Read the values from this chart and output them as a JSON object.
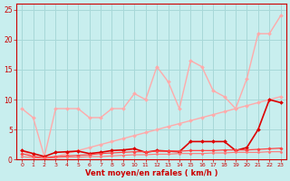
{
  "xlabel": "Vent moyen/en rafales ( km/h )",
  "xlim": [
    -0.5,
    23.5
  ],
  "ylim": [
    0,
    26
  ],
  "bg_color": "#c8eeee",
  "grid_color": "#a8d8d8",
  "xticks": [
    0,
    1,
    2,
    3,
    4,
    5,
    6,
    7,
    8,
    9,
    10,
    11,
    12,
    13,
    14,
    15,
    16,
    17,
    18,
    19,
    20,
    21,
    22,
    23
  ],
  "yticks": [
    0,
    5,
    10,
    15,
    20,
    25
  ],
  "series": [
    {
      "x": [
        0,
        1,
        2,
        3,
        4,
        5,
        6,
        7,
        8,
        9,
        10,
        11,
        12,
        13,
        14,
        15,
        16,
        17,
        18,
        19,
        20,
        21,
        22,
        23
      ],
      "y": [
        8.5,
        7.0,
        0.5,
        8.5,
        8.5,
        8.5,
        7.0,
        7.0,
        8.5,
        8.5,
        11.0,
        10.0,
        15.5,
        13.0,
        8.5,
        16.5,
        15.5,
        11.5,
        10.5,
        8.5,
        13.5,
        21.0,
        21.0,
        24.0
      ],
      "color": "#ffaaaa",
      "lw": 1.0,
      "marker": "D",
      "ms": 2.0
    },
    {
      "x": [
        0,
        1,
        2,
        3,
        4,
        5,
        6,
        7,
        8,
        9,
        10,
        11,
        12,
        13,
        14,
        15,
        16,
        17,
        18,
        19,
        20,
        21,
        22,
        23
      ],
      "y": [
        1.5,
        0.5,
        0.3,
        0.5,
        1.0,
        1.5,
        2.0,
        2.5,
        3.0,
        3.5,
        4.0,
        4.5,
        5.0,
        5.5,
        6.0,
        6.5,
        7.0,
        7.5,
        8.0,
        8.5,
        9.0,
        9.5,
        10.0,
        10.5
      ],
      "color": "#ffaaaa",
      "lw": 1.0,
      "marker": "D",
      "ms": 2.0
    },
    {
      "x": [
        0,
        1,
        2,
        3,
        4,
        5,
        6,
        7,
        8,
        9,
        10,
        11,
        12,
        13,
        14,
        15,
        16,
        17,
        18,
        19,
        20,
        21,
        22,
        23
      ],
      "y": [
        1.5,
        1.0,
        0.5,
        1.2,
        1.3,
        1.4,
        1.0,
        1.2,
        1.5,
        1.6,
        1.8,
        1.2,
        1.5,
        1.4,
        1.3,
        3.0,
        3.0,
        3.0,
        3.0,
        1.5,
        2.0,
        5.0,
        10.0,
        9.5
      ],
      "color": "#dd0000",
      "lw": 1.2,
      "marker": "D",
      "ms": 2.0
    },
    {
      "x": [
        0,
        1,
        2,
        3,
        4,
        5,
        6,
        7,
        8,
        9,
        10,
        11,
        12,
        13,
        14,
        15,
        16,
        17,
        18,
        19,
        20,
        21,
        22,
        23
      ],
      "y": [
        1.0,
        0.5,
        0.3,
        0.5,
        0.6,
        0.7,
        0.8,
        1.0,
        1.1,
        1.2,
        1.3,
        1.3,
        1.4,
        1.4,
        1.4,
        1.5,
        1.5,
        1.5,
        1.6,
        1.6,
        1.6,
        1.7,
        1.8,
        1.9
      ],
      "color": "#ff4444",
      "lw": 0.9,
      "marker": "D",
      "ms": 1.8
    },
    {
      "x": [
        0,
        1,
        2,
        3,
        4,
        5,
        6,
        7,
        8,
        9,
        10,
        11,
        12,
        13,
        14,
        15,
        16,
        17,
        18,
        19,
        20,
        21,
        22,
        23
      ],
      "y": [
        0.5,
        0.3,
        0.2,
        0.3,
        0.4,
        0.4,
        0.5,
        0.5,
        0.6,
        0.7,
        0.8,
        0.8,
        0.9,
        0.9,
        1.0,
        1.0,
        1.0,
        1.1,
        1.1,
        1.2,
        1.2,
        1.2,
        1.3,
        1.3
      ],
      "color": "#ff7777",
      "lw": 0.8,
      "marker": "D",
      "ms": 1.5
    }
  ]
}
